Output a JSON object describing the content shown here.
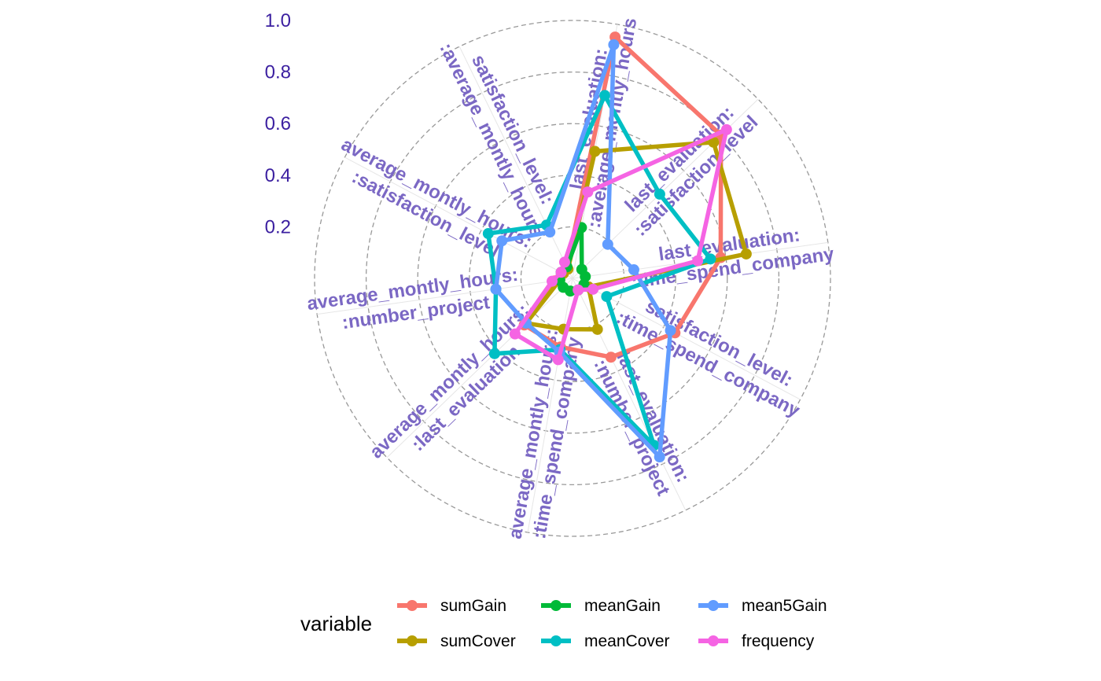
{
  "chart_data": {
    "type": "radar",
    "categories": [
      "last_evaluation:\n:average_montly_hours",
      "last_evaluation:\n:satisfaction_level",
      "last_evaluation:\n:time_spend_company",
      "satisfaction_level:\n:time_spend_company",
      "last_evaluation:\n:number_project",
      "average_montly_hours:\n:time_spend_company",
      "average_montly_hours:\n:last_evaluation",
      "average_montly_hours:\n:number_project",
      "average_montly_hours:\n:satisfaction_level",
      "satisfaction_level:\n:average_montly_hours"
    ],
    "ytick_labels": [
      "0.2",
      "0.4",
      "0.6",
      "0.8",
      "1.0"
    ],
    "ylim": [
      0,
      1.0
    ],
    "grid": "dashed circles",
    "legend_title": "variable",
    "legend_position": "bottom",
    "series": [
      {
        "name": "sumGain",
        "color": "#F8766D",
        "values": [
          0.95,
          0.8,
          0.58,
          0.45,
          0.34,
          0.27,
          0.26,
          0.07,
          0.05,
          0.05
        ]
      },
      {
        "name": "sumCover",
        "color": "#B79F00",
        "values": [
          0.5,
          0.76,
          0.68,
          0.07,
          0.22,
          0.2,
          0.25,
          0.05,
          0.04,
          0.04
        ]
      },
      {
        "name": "meanGain",
        "color": "#00BA38",
        "values": [
          0.2,
          0.05,
          0.05,
          0.05,
          0.05,
          0.05,
          0.05,
          0.05,
          0.05,
          0.05
        ]
      },
      {
        "name": "meanCover",
        "color": "#00BFC4",
        "values": [
          0.72,
          0.47,
          0.54,
          0.15,
          0.72,
          0.28,
          0.42,
          0.3,
          0.37,
          0.23
        ]
      },
      {
        "name": "mean5Gain",
        "color": "#619CFF",
        "values": [
          0.92,
          0.19,
          0.24,
          0.43,
          0.77,
          0.29,
          0.25,
          0.3,
          0.31,
          0.2
        ]
      },
      {
        "name": "frequency",
        "color": "#F564E3",
        "values": [
          0.34,
          0.83,
          0.49,
          0.09,
          0.05,
          0.32,
          0.31,
          0.08,
          0.05,
          0.07
        ]
      }
    ]
  }
}
